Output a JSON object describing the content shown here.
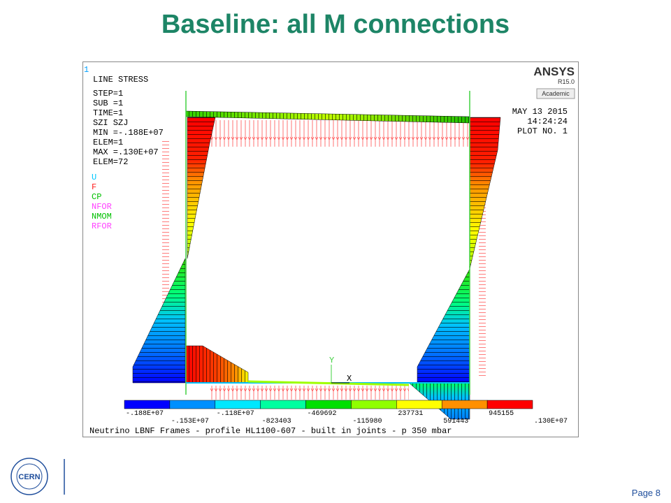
{
  "slide": {
    "title": "Baseline: all M connections",
    "page": "Page 8",
    "logo": "CERN"
  },
  "plot": {
    "window_number": "1",
    "header": [
      "LINE STRESS",
      "STEP=1",
      "SUB =1",
      "TIME=1",
      "SZI    SZJ",
      "MIN =-.188E+07",
      "ELEM=1",
      "MAX =.130E+07",
      "ELEM=72"
    ],
    "symbols": [
      {
        "label": "U",
        "color": "#00c8ff"
      },
      {
        "label": "F",
        "color": "#ff2020"
      },
      {
        "label": "CP",
        "color": "#00c000"
      },
      {
        "label": "NFOR",
        "color": "#ff40ff"
      },
      {
        "label": "NMOM",
        "color": "#00c000"
      },
      {
        "label": "RFOR",
        "color": "#ff40ff"
      }
    ],
    "brand": "ANSYS",
    "version": "R15.0",
    "license": "Academic",
    "date": "MAY 13 2015",
    "time": "14:24:24",
    "plot_no": "PLOT NO.   1",
    "axis_labels": [
      "Y",
      "X"
    ],
    "colorbar": {
      "colors": [
        "#0000ff",
        "#0090ff",
        "#00e8ff",
        "#00ffa0",
        "#00e000",
        "#90ff00",
        "#ffff00",
        "#ff9000",
        "#ff0000"
      ],
      "labels": [
        "-.188E+07",
        "-.153E+07",
        "-.118E+07",
        "-823403",
        "-469692",
        "-115980",
        "237731",
        "591443",
        "945155",
        ".130E+07"
      ]
    },
    "caption": "Neutrino LBNF Frames - profile HL1100-607 - built in joints - p 350 mbar"
  }
}
